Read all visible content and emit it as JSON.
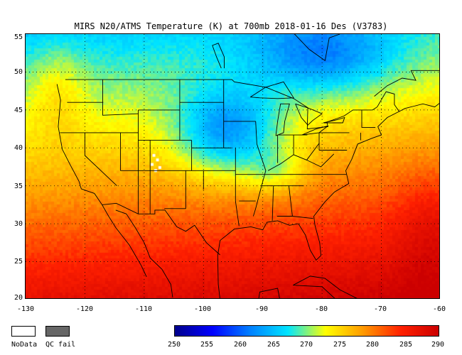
{
  "title": "MIRS N20/ATMS Temperature (K) at 700mb 2018-01-16 Des  (V3783)",
  "map": {
    "lon_range": [
      -130,
      -60
    ],
    "lat_range": [
      20,
      55
    ],
    "x_ticks": [
      "-130",
      "-120",
      "-110",
      "-100",
      "-90",
      "-80",
      "-70",
      "-60"
    ],
    "y_ticks": [
      "55",
      "50",
      "45",
      "40",
      "35",
      "30",
      "25",
      "20"
    ],
    "grid": "dotted",
    "variable": "Temperature (K)",
    "level": "700mb",
    "date": "2018-01-16",
    "pass": "Des"
  },
  "legend": {
    "nodata_label": "NoData",
    "qcfail_label": "QC fail",
    "nodata_color": "#ffffff",
    "qcfail_color": "#666666"
  },
  "colorbar": {
    "min": 250,
    "max": 290,
    "ticks": [
      "250",
      "255",
      "260",
      "265",
      "270",
      "275",
      "280",
      "285",
      "290"
    ],
    "colormap": [
      "#00008b",
      "#0000ff",
      "#0080ff",
      "#00e5ff",
      "#ffff00",
      "#ff9900",
      "#ff2000",
      "#cc0000"
    ]
  }
}
